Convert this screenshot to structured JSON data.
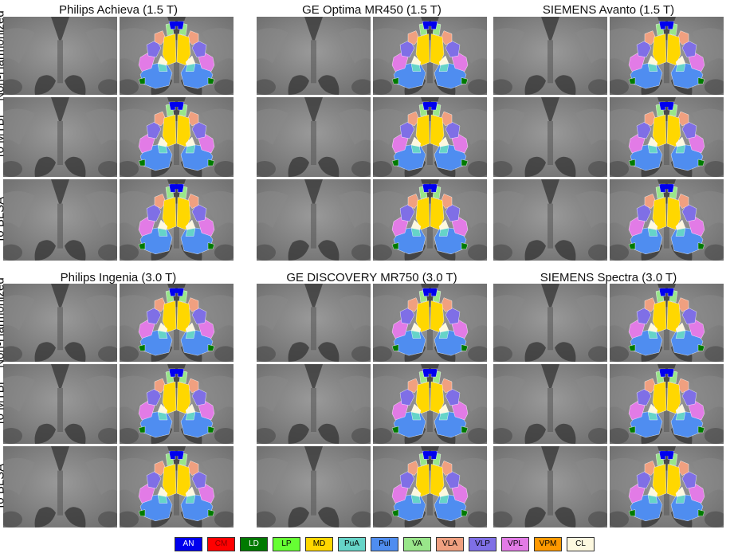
{
  "scanners": [
    {
      "name": "Philips Achieva (1.5 T)"
    },
    {
      "name": "GE Optima MR450 (1.5 T)"
    },
    {
      "name": "SIEMENS Avanto (1.5 T)"
    },
    {
      "name": "Philips Ingenia (3.0 T)"
    },
    {
      "name": "GE DISCOVERY MR750 (3.0 T)"
    },
    {
      "name": "SIEMENS Spectra (3.0 T)"
    }
  ],
  "row_labels": [
    "Non-Harmonized",
    "To MTBI",
    "To BLSA"
  ],
  "legend": [
    {
      "label": "AN",
      "color": "#0000ee",
      "text_color": "#ffffff"
    },
    {
      "label": "CM",
      "color": "#ff0000",
      "text_color": "#8b0000"
    },
    {
      "label": "LD",
      "color": "#007a00",
      "text_color": "#ffffff"
    },
    {
      "label": "LP",
      "color": "#66ff33",
      "text_color": "#000000"
    },
    {
      "label": "MD",
      "color": "#ffd700",
      "text_color": "#000000"
    },
    {
      "label": "PuA",
      "color": "#66d4c8",
      "text_color": "#000000"
    },
    {
      "label": "Pul",
      "color": "#4f8df0",
      "text_color": "#000000"
    },
    {
      "label": "VA",
      "color": "#99e68a",
      "text_color": "#000000"
    },
    {
      "label": "VLA",
      "color": "#f0a080",
      "text_color": "#000000"
    },
    {
      "label": "VLP",
      "color": "#7f6fe6",
      "text_color": "#000000"
    },
    {
      "label": "VPL",
      "color": "#e27be6",
      "text_color": "#000000"
    },
    {
      "label": "VPM",
      "color": "#ff9900",
      "text_color": "#000000"
    },
    {
      "label": "CL",
      "color": "#fdf8df",
      "text_color": "#000000"
    }
  ]
}
